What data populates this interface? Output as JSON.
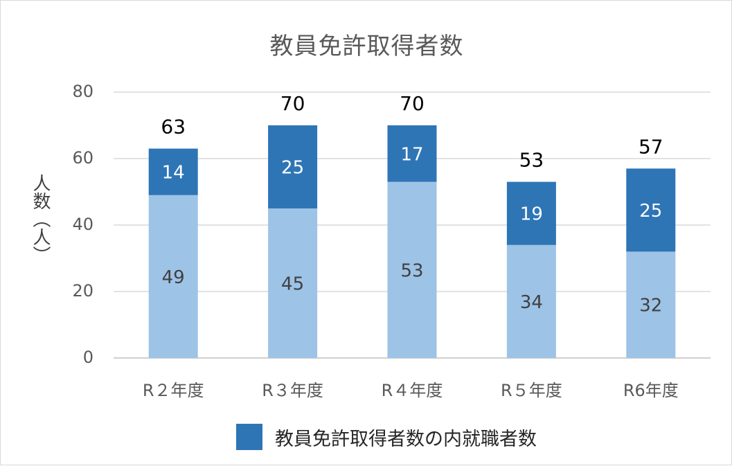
{
  "chart_data": {
    "type": "bar",
    "stacked": true,
    "title": "教員免許取得者数",
    "ylabel": "人数（人）",
    "xlabel": "",
    "categories": [
      "R２年度",
      "R３年度",
      "R４年度",
      "R５年度",
      "R6年度"
    ],
    "series": [
      {
        "values": [
          49,
          45,
          53,
          34,
          32
        ],
        "color": "#9dc3e6"
      },
      {
        "name": "教員免許取得者数の内就職者数",
        "values": [
          14,
          25,
          17,
          19,
          25
        ],
        "color": "#2e75b6"
      }
    ],
    "totals": [
      63,
      70,
      70,
      53,
      57
    ],
    "ylim": [
      0,
      80
    ],
    "yticks": [
      0,
      20,
      40,
      60,
      80
    ],
    "grid": true,
    "legend": "bottom"
  }
}
